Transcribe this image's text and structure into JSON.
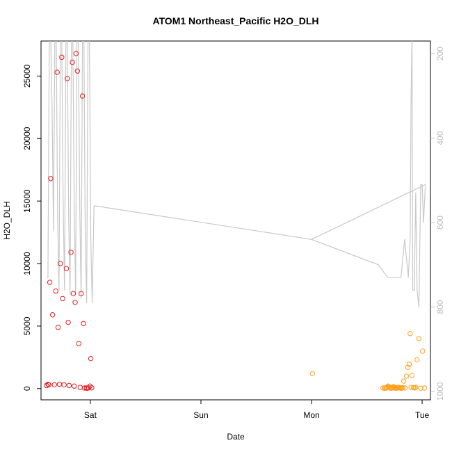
{
  "chart_data": {
    "type": "scatter",
    "title": "ATOM1 Northeast_Pacific H2O_DLH",
    "xlabel": "Date",
    "ylabel": "H2O_DLH",
    "x_ticks": [
      "Sat",
      "Sun",
      "Mon",
      "Tue"
    ],
    "x_tick_values": [
      24,
      48,
      72,
      96
    ],
    "xlim": [
      13.3,
      97.8
    ],
    "ylim": [
      -900,
      27800
    ],
    "y_ticks": [
      0,
      5000,
      10000,
      15000,
      20000,
      25000
    ],
    "y_tick_labels": [
      "0",
      "5000",
      "10000",
      "15000",
      "20000",
      "25000"
    ],
    "right_axis": {
      "reversed": true,
      "lim": [
        1020,
        170
      ],
      "ticks": [
        200,
        400,
        600,
        800,
        1000
      ],
      "tick_labels": [
        "200",
        "400",
        "600",
        "800",
        "1000"
      ],
      "color": "#bdbdbd"
    },
    "colors": {
      "scatter_early": "#e41a1c",
      "scatter_late": "#ff9f1a",
      "profile_line": "#c8c8c8",
      "axis": "#000000"
    },
    "series": [
      {
        "marker": "circle",
        "color": "#e41a1c",
        "x": [
          14.5,
          14.8,
          15.0,
          15.2,
          15.4,
          15.8,
          16.2,
          16.5,
          16.8,
          17.0,
          17.3,
          17.5,
          17.8,
          18.0,
          18.3,
          18.8,
          19.0,
          19.2,
          19.4,
          19.8,
          20.1,
          20.3,
          20.5,
          20.7,
          20.9,
          21.2,
          21.5,
          21.8,
          22.0,
          22.3,
          22.5,
          22.7,
          23.1,
          23.3,
          23.6,
          23.9,
          24.1,
          24.3
        ],
        "y": [
          250,
          350,
          300,
          8500,
          16800,
          5900,
          300,
          7800,
          25300,
          4900,
          350,
          10000,
          26500,
          7200,
          300,
          9600,
          24800,
          5300,
          250,
          10900,
          26100,
          7600,
          200,
          6900,
          26800,
          25400,
          3600,
          100,
          7600,
          23400,
          5200,
          50,
          50,
          30,
          60,
          200,
          2400,
          60
        ]
      },
      {
        "marker": "circle",
        "color": "#ff9f1a",
        "x": [
          72.2,
          87.5,
          87.8,
          88.0,
          88.2,
          88.4,
          88.6,
          88.8,
          89.0,
          89.2,
          89.4,
          89.6,
          89.8,
          90.0,
          90.2,
          90.4,
          90.6,
          90.8,
          91.0,
          91.2,
          91.4,
          91.6,
          91.8,
          92.0,
          92.3,
          92.6,
          92.9,
          93.2,
          93.4,
          93.6,
          93.8,
          94.1,
          94.4,
          94.6,
          94.9,
          95.3,
          95.7,
          96.1,
          96.5
        ],
        "y": [
          1200,
          50,
          30,
          60,
          40,
          100,
          200,
          150,
          80,
          30,
          50,
          100,
          150,
          60,
          30,
          40,
          80,
          100,
          50,
          60,
          30,
          40,
          90,
          600,
          50,
          1000,
          1700,
          1950,
          4400,
          100,
          1050,
          80,
          60,
          100,
          2300,
          4000,
          30,
          3000,
          50
        ]
      }
    ],
    "profile_line_values": {
      "axis": "right",
      "x": [
        14.5,
        14.8,
        15.1,
        15.4,
        15.7,
        16.0,
        16.3,
        16.6,
        16.9,
        17.2,
        17.5,
        17.8,
        18.1,
        18.4,
        18.7,
        19.0,
        19.3,
        19.6,
        19.9,
        20.2,
        20.5,
        20.8,
        21.1,
        21.4,
        21.7,
        22.0,
        22.3,
        22.6,
        22.9,
        23.2,
        23.5,
        23.8,
        24.1,
        24.4,
        24.8,
        72.0,
        86.5,
        88.5,
        90.0,
        91.4,
        92.2,
        93.0,
        93.4,
        93.6,
        93.8,
        93.95,
        94.3,
        94.6,
        94.9,
        95.3,
        95.7,
        96.0,
        96.3,
        96.7,
        72.0
      ],
      "y": [
        730,
        730,
        160,
        160,
        330,
        620,
        160,
        160,
        590,
        760,
        160,
        160,
        550,
        760,
        160,
        160,
        590,
        770,
        160,
        160,
        550,
        770,
        160,
        160,
        560,
        780,
        160,
        160,
        640,
        790,
        160,
        160,
        640,
        790,
        560,
        640,
        700,
        730,
        730,
        730,
        640,
        730,
        640,
        300,
        160,
        760,
        760,
        530,
        760,
        800,
        510,
        510,
        600,
        510,
        640
      ]
    }
  }
}
